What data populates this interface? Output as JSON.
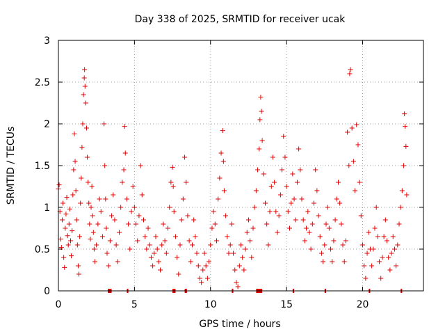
{
  "chart_data": {
    "type": "scatter",
    "title": "Day 338 of 2025, SRMTID for receiver ucak",
    "xlabel": "GPS time / hours",
    "ylabel": "SRMTID / TECUs",
    "xlim": [
      0,
      24
    ],
    "ylim": [
      0,
      3
    ],
    "x_ticks": [
      0,
      5,
      10,
      15,
      20
    ],
    "x_tick_labels": [
      "0",
      "5",
      "10",
      "15",
      "20"
    ],
    "y_ticks": [
      0,
      0.5,
      1,
      1.5,
      2,
      2.5,
      3
    ],
    "y_tick_labels": [
      "0",
      "0.5",
      "1",
      "1.5",
      "2",
      "2.5",
      "3"
    ],
    "grid": true,
    "marker": "plus",
    "color": "#e00000",
    "series": [
      {
        "name": "SRMTID",
        "points": [
          [
            0.0,
            1.22
          ],
          [
            0.05,
            1.27
          ],
          [
            0.1,
            0.95
          ],
          [
            0.15,
            0.62
          ],
          [
            0.2,
            0.52
          ],
          [
            0.25,
            0.85
          ],
          [
            0.3,
            1.05
          ],
          [
            0.35,
            0.4
          ],
          [
            0.4,
            0.28
          ],
          [
            0.45,
            0.75
          ],
          [
            0.5,
            0.92
          ],
          [
            0.55,
            1.12
          ],
          [
            0.6,
            0.66
          ],
          [
            0.65,
            0.55
          ],
          [
            0.7,
            0.8
          ],
          [
            0.75,
            0.98
          ],
          [
            0.8,
            0.6
          ],
          [
            0.85,
            0.42
          ],
          [
            0.9,
            0.72
          ],
          [
            0.95,
            1.15
          ],
          [
            1.0,
            1.45
          ],
          [
            1.05,
            1.88
          ],
          [
            1.1,
            1.55
          ],
          [
            1.15,
            1.2
          ],
          [
            1.2,
            0.85
          ],
          [
            1.25,
            0.55
          ],
          [
            1.3,
            0.3
          ],
          [
            1.35,
            0.2
          ],
          [
            1.4,
            0.65
          ],
          [
            1.45,
            1.05
          ],
          [
            1.5,
            1.35
          ],
          [
            1.55,
            1.72
          ],
          [
            1.6,
            2.0
          ],
          [
            1.65,
            2.35
          ],
          [
            1.7,
            2.55
          ],
          [
            1.72,
            2.65
          ],
          [
            1.75,
            2.45
          ],
          [
            1.8,
            2.25
          ],
          [
            1.85,
            1.95
          ],
          [
            1.9,
            1.6
          ],
          [
            1.95,
            1.3
          ],
          [
            2.0,
            1.05
          ],
          [
            2.05,
            0.8
          ],
          [
            2.1,
            0.62
          ],
          [
            2.15,
            1.0
          ],
          [
            2.2,
            1.25
          ],
          [
            2.25,
            0.9
          ],
          [
            2.3,
            0.7
          ],
          [
            2.35,
            0.5
          ],
          [
            2.4,
            0.35
          ],
          [
            2.5,
            0.55
          ],
          [
            2.6,
            0.8
          ],
          [
            2.7,
            1.1
          ],
          [
            2.8,
            0.95
          ],
          [
            2.9,
            0.65
          ],
          [
            3.0,
            2.0
          ],
          [
            3.05,
            1.5
          ],
          [
            3.1,
            1.1
          ],
          [
            3.15,
            0.75
          ],
          [
            3.2,
            0.45
          ],
          [
            3.3,
            0.3
          ],
          [
            3.4,
            0.6
          ],
          [
            3.5,
            0.9
          ],
          [
            3.6,
            1.15
          ],
          [
            3.7,
            0.85
          ],
          [
            3.8,
            0.55
          ],
          [
            3.9,
            0.35
          ],
          [
            4.0,
            0.7
          ],
          [
            4.1,
            1.0
          ],
          [
            4.2,
            1.3
          ],
          [
            4.3,
            1.45
          ],
          [
            4.35,
            1.97
          ],
          [
            4.4,
            1.65
          ],
          [
            4.5,
            1.1
          ],
          [
            4.6,
            0.8
          ],
          [
            4.7,
            0.5
          ],
          [
            4.8,
            0.95
          ],
          [
            4.9,
            1.25
          ],
          [
            5.0,
            1.0
          ],
          [
            5.1,
            0.8
          ],
          [
            5.2,
            0.6
          ],
          [
            5.3,
            0.9
          ],
          [
            5.4,
            1.5
          ],
          [
            5.5,
            1.15
          ],
          [
            5.6,
            0.85
          ],
          [
            5.7,
            0.65
          ],
          [
            5.8,
            0.5
          ],
          [
            5.9,
            0.75
          ],
          [
            6.0,
            0.55
          ],
          [
            6.1,
            0.4
          ],
          [
            6.2,
            0.3
          ],
          [
            6.3,
            0.45
          ],
          [
            6.4,
            0.65
          ],
          [
            6.5,
            0.5
          ],
          [
            6.6,
            0.35
          ],
          [
            6.7,
            0.25
          ],
          [
            6.8,
            0.55
          ],
          [
            6.9,
            0.8
          ],
          [
            7.0,
            0.6
          ],
          [
            7.1,
            0.45
          ],
          [
            7.2,
            0.75
          ],
          [
            7.3,
            1.0
          ],
          [
            7.4,
            1.3
          ],
          [
            7.5,
            1.48
          ],
          [
            7.55,
            1.25
          ],
          [
            7.6,
            0.95
          ],
          [
            7.7,
            0.65
          ],
          [
            7.8,
            0.4
          ],
          [
            7.9,
            0.2
          ],
          [
            8.0,
            0.55
          ],
          [
            8.1,
            0.85
          ],
          [
            8.2,
            1.1
          ],
          [
            8.3,
            1.6
          ],
          [
            8.4,
            1.3
          ],
          [
            8.5,
            0.9
          ],
          [
            8.6,
            0.6
          ],
          [
            8.7,
            0.35
          ],
          [
            8.8,
            0.55
          ],
          [
            8.9,
            0.85
          ],
          [
            9.0,
            0.65
          ],
          [
            9.1,
            0.45
          ],
          [
            9.2,
            0.3
          ],
          [
            9.3,
            0.15
          ],
          [
            9.4,
            0.1
          ],
          [
            9.5,
            0.25
          ],
          [
            9.6,
            0.45
          ],
          [
            9.7,
            0.3
          ],
          [
            9.8,
            0.15
          ],
          [
            9.9,
            0.35
          ],
          [
            10.0,
            0.55
          ],
          [
            10.1,
            0.75
          ],
          [
            10.2,
            0.95
          ],
          [
            10.3,
            0.8
          ],
          [
            10.4,
            0.6
          ],
          [
            10.5,
            1.1
          ],
          [
            10.6,
            1.35
          ],
          [
            10.7,
            1.65
          ],
          [
            10.8,
            1.92
          ],
          [
            10.85,
            1.55
          ],
          [
            10.9,
            1.2
          ],
          [
            11.0,
            0.9
          ],
          [
            11.1,
            0.65
          ],
          [
            11.2,
            0.45
          ],
          [
            11.3,
            0.55
          ],
          [
            11.4,
            0.8
          ],
          [
            11.5,
            0.45
          ],
          [
            11.6,
            0.25
          ],
          [
            11.7,
            0.1
          ],
          [
            11.8,
            0.05
          ],
          [
            11.9,
            0.3
          ],
          [
            12.0,
            0.55
          ],
          [
            12.1,
            0.4
          ],
          [
            12.2,
            0.25
          ],
          [
            12.3,
            0.5
          ],
          [
            12.4,
            0.7
          ],
          [
            12.5,
            0.85
          ],
          [
            12.6,
            0.6
          ],
          [
            12.7,
            0.4
          ],
          [
            12.8,
            0.75
          ],
          [
            12.9,
            1.0
          ],
          [
            13.0,
            1.2
          ],
          [
            13.1,
            1.45
          ],
          [
            13.2,
            1.7
          ],
          [
            13.25,
            2.05
          ],
          [
            13.3,
            2.32
          ],
          [
            13.35,
            2.15
          ],
          [
            13.4,
            1.8
          ],
          [
            13.5,
            1.4
          ],
          [
            13.6,
            1.05
          ],
          [
            13.7,
            0.8
          ],
          [
            13.8,
            0.55
          ],
          [
            13.9,
            0.95
          ],
          [
            14.0,
            1.25
          ],
          [
            14.1,
            1.6
          ],
          [
            14.2,
            1.3
          ],
          [
            14.3,
            0.95
          ],
          [
            14.4,
            0.7
          ],
          [
            14.5,
            0.9
          ],
          [
            14.6,
            1.15
          ],
          [
            14.7,
            1.45
          ],
          [
            14.8,
            1.85
          ],
          [
            14.9,
            1.6
          ],
          [
            15.0,
            1.25
          ],
          [
            15.1,
            0.95
          ],
          [
            15.2,
            0.75
          ],
          [
            15.3,
            1.05
          ],
          [
            15.4,
            1.4
          ],
          [
            15.5,
            1.1
          ],
          [
            15.6,
            0.85
          ],
          [
            15.7,
            1.3
          ],
          [
            15.8,
            1.7
          ],
          [
            15.9,
            1.45
          ],
          [
            16.0,
            1.1
          ],
          [
            16.1,
            0.85
          ],
          [
            16.2,
            0.6
          ],
          [
            16.3,
            0.75
          ],
          [
            16.4,
            0.95
          ],
          [
            16.5,
            0.7
          ],
          [
            16.6,
            0.5
          ],
          [
            16.7,
            0.8
          ],
          [
            16.8,
            1.05
          ],
          [
            16.9,
            1.45
          ],
          [
            17.0,
            1.2
          ],
          [
            17.1,
            0.9
          ],
          [
            17.2,
            0.65
          ],
          [
            17.3,
            0.45
          ],
          [
            17.4,
            0.35
          ],
          [
            17.5,
            0.55
          ],
          [
            17.6,
            0.8
          ],
          [
            17.7,
            1.0
          ],
          [
            17.8,
            0.75
          ],
          [
            17.9,
            0.5
          ],
          [
            18.0,
            0.35
          ],
          [
            18.1,
            0.6
          ],
          [
            18.2,
            0.85
          ],
          [
            18.3,
            1.1
          ],
          [
            18.4,
            1.3
          ],
          [
            18.5,
            1.05
          ],
          [
            18.6,
            0.8
          ],
          [
            18.7,
            0.55
          ],
          [
            18.8,
            0.35
          ],
          [
            18.9,
            0.6
          ],
          [
            19.0,
            1.9
          ],
          [
            19.1,
            1.5
          ],
          [
            19.15,
            2.6
          ],
          [
            19.2,
            2.65
          ],
          [
            19.3,
            1.95
          ],
          [
            19.4,
            1.55
          ],
          [
            19.5,
            1.2
          ],
          [
            19.6,
            1.99
          ],
          [
            19.7,
            1.75
          ],
          [
            19.8,
            1.3
          ],
          [
            19.9,
            0.9
          ],
          [
            20.0,
            0.55
          ],
          [
            20.1,
            0.3
          ],
          [
            20.2,
            0.15
          ],
          [
            20.3,
            0.45
          ],
          [
            20.4,
            0.7
          ],
          [
            20.5,
            0.5
          ],
          [
            20.6,
            0.3
          ],
          [
            20.7,
            0.5
          ],
          [
            20.8,
            0.75
          ],
          [
            20.9,
            1.0
          ],
          [
            21.0,
            0.65
          ],
          [
            21.1,
            0.35
          ],
          [
            21.2,
            0.15
          ],
          [
            21.3,
            0.4
          ],
          [
            21.4,
            0.65
          ],
          [
            21.5,
            0.85
          ],
          [
            21.6,
            0.6
          ],
          [
            21.7,
            0.4
          ],
          [
            21.8,
            0.25
          ],
          [
            21.9,
            0.45
          ],
          [
            22.0,
            0.65
          ],
          [
            22.1,
            0.5
          ],
          [
            22.2,
            0.3
          ],
          [
            22.3,
            0.55
          ],
          [
            22.4,
            0.8
          ],
          [
            22.5,
            1.0
          ],
          [
            22.6,
            1.2
          ],
          [
            22.7,
            1.5
          ],
          [
            22.75,
            2.12
          ],
          [
            22.8,
            1.97
          ],
          [
            22.85,
            1.73
          ],
          [
            22.9,
            1.15
          ]
        ]
      }
    ],
    "baseline_segments": [
      [
        3.25,
        3.5
      ],
      [
        4.5,
        4.6
      ],
      [
        7.5,
        7.7
      ],
      [
        8.3,
        8.45
      ],
      [
        11.4,
        11.5
      ],
      [
        13.0,
        13.4
      ],
      [
        15.4,
        15.5
      ],
      [
        17.5,
        17.6
      ],
      [
        20.4,
        20.5
      ],
      [
        22.5,
        22.6
      ]
    ]
  }
}
